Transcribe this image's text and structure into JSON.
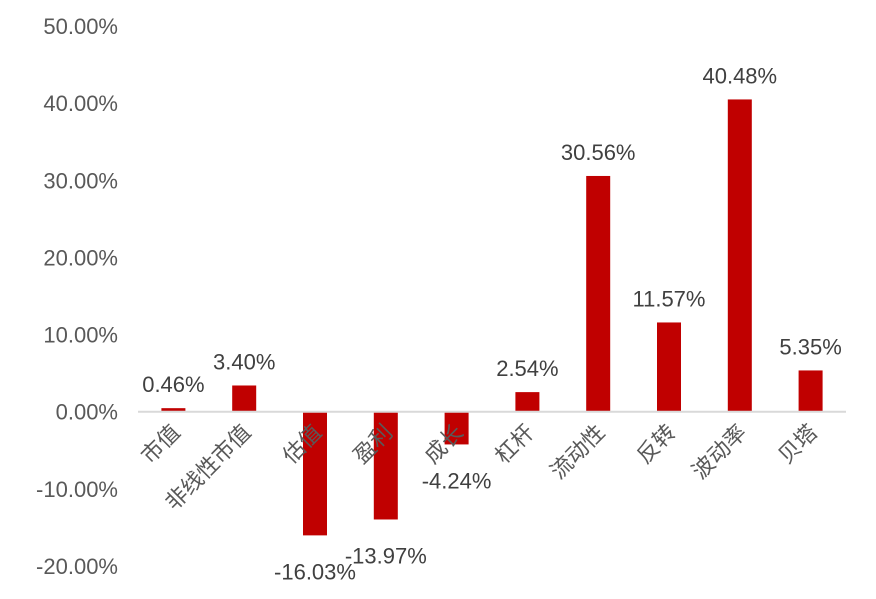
{
  "chart_data": {
    "type": "bar",
    "categories": [
      "市值",
      "非线性市值",
      "估值",
      "盈利",
      "成长",
      "杠杆",
      "流动性",
      "反转",
      "波动率",
      "贝塔"
    ],
    "values": [
      0.46,
      3.4,
      -16.03,
      -13.97,
      -4.24,
      2.54,
      30.56,
      11.57,
      40.48,
      5.35
    ],
    "data_labels": [
      "0.46%",
      "3.40%",
      "-16.03%",
      "-13.97%",
      "-4.24%",
      "2.54%",
      "30.56%",
      "11.57%",
      "40.48%",
      "5.35%"
    ],
    "ylim": [
      -20,
      50
    ],
    "ytick_values": [
      50,
      40,
      30,
      20,
      10,
      0,
      -10,
      -20
    ],
    "ytick_labels": [
      "50.00%",
      "40.00%",
      "30.00%",
      "20.00%",
      "10.00%",
      "0.00%",
      "-10.00%",
      "-20.00%"
    ],
    "bar_color": "#C00000",
    "axis_color": "#D9D9D9",
    "grid": false,
    "legend": "none",
    "title": "",
    "xlabel": "",
    "ylabel": ""
  }
}
